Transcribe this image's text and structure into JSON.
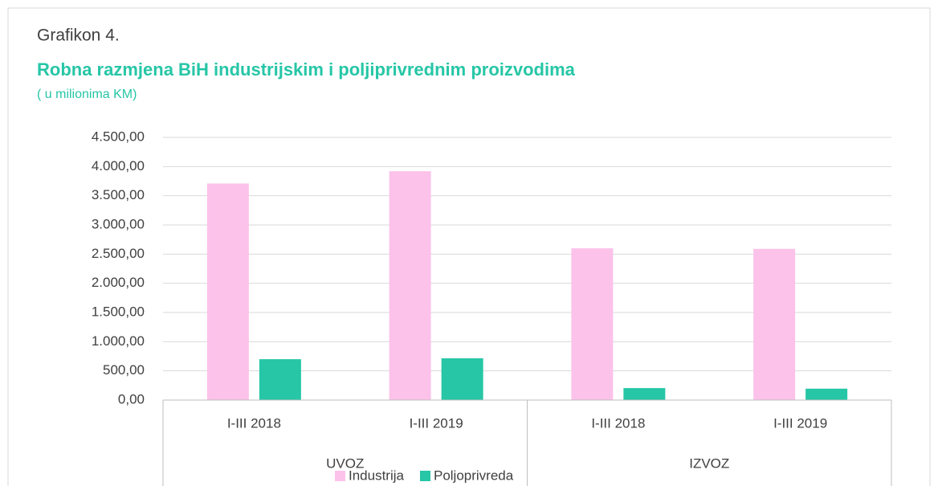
{
  "chart_data": {
    "type": "bar",
    "label": "Grafikon 4.",
    "title": "Robna razmjena BiH industrijskim i poljiprivrednim proizvodima",
    "subtitle": "( u milionima KM)",
    "category_groups": [
      {
        "name": "UVOZ",
        "categories": [
          "I-III 2018",
          "I-III 2019"
        ]
      },
      {
        "name": "IZVOZ",
        "categories": [
          "I-III 2018",
          "I-III 2019"
        ]
      }
    ],
    "series": [
      {
        "name": "Industrija",
        "color": "#fcc2ea",
        "values": [
          3710,
          3920,
          2600,
          2590
        ]
      },
      {
        "name": "Poljoprivreda",
        "color": "#26c6a6",
        "values": [
          700,
          715,
          205,
          195
        ]
      }
    ],
    "ylim": [
      0,
      4500
    ],
    "yticks": [
      {
        "value": 0,
        "label": "0,00"
      },
      {
        "value": 500,
        "label": "500,00"
      },
      {
        "value": 1000,
        "label": "1.000,00"
      },
      {
        "value": 1500,
        "label": "1.500,00"
      },
      {
        "value": 2000,
        "label": "2.000,00"
      },
      {
        "value": 2500,
        "label": "2.500,00"
      },
      {
        "value": 3000,
        "label": "3.000,00"
      },
      {
        "value": 3500,
        "label": "3.500,00"
      },
      {
        "value": 4000,
        "label": "4.000,00"
      },
      {
        "value": 4500,
        "label": "4.500,00"
      }
    ],
    "grid": true,
    "legend": "bottom"
  }
}
